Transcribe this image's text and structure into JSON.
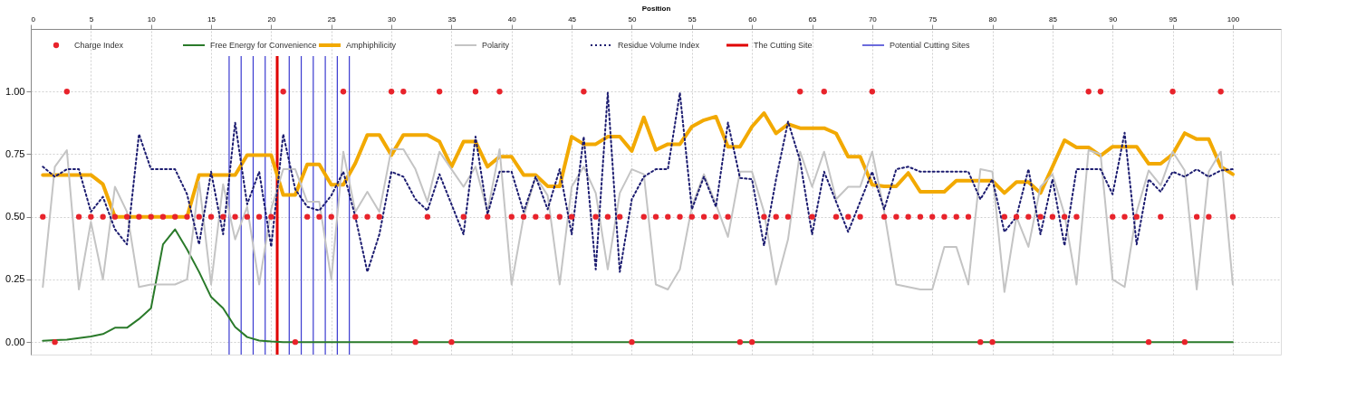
{
  "chart_data": {
    "type": "line",
    "xlabel": "Position",
    "legend": "top left",
    "grid": true,
    "xlim": [
      0,
      104
    ],
    "ylim": [
      -0.05,
      1.25
    ],
    "xticks": [
      0,
      5,
      10,
      15,
      20,
      25,
      30,
      35,
      40,
      45,
      50,
      55,
      60,
      65,
      70,
      75,
      80,
      85,
      90,
      95,
      100
    ],
    "yticks": [
      {
        "value": 0,
        "label": "0.00"
      },
      {
        "value": 0.25,
        "label": "0.25"
      },
      {
        "value": 0.5,
        "label": "0.50"
      },
      {
        "value": 0.75,
        "label": "0.75"
      },
      {
        "value": 1,
        "label": "1.00"
      }
    ],
    "x": [
      1,
      2,
      3,
      4,
      5,
      6,
      7,
      8,
      9,
      10,
      11,
      12,
      13,
      14,
      15,
      16,
      17,
      18,
      19,
      20,
      21,
      22,
      23,
      24,
      25,
      26,
      27,
      28,
      29,
      30,
      31,
      32,
      33,
      34,
      35,
      36,
      37,
      38,
      39,
      40,
      41,
      42,
      43,
      44,
      45,
      46,
      47,
      48,
      49,
      50,
      51,
      52,
      53,
      54,
      55,
      56,
      57,
      58,
      59,
      60,
      61,
      62,
      63,
      64,
      65,
      66,
      67,
      68,
      69,
      70,
      71,
      72,
      73,
      74,
      75,
      76,
      77,
      78,
      79,
      80,
      81,
      82,
      83,
      84,
      85,
      86,
      87,
      88,
      89,
      90,
      91,
      92,
      93,
      94,
      95,
      96,
      97,
      98,
      99,
      100
    ],
    "series": [
      {
        "name": "Charge Index",
        "type": "scatter",
        "marker": "circle",
        "color": "#e8232b",
        "values": [
          0.5,
          0,
          1,
          0.5,
          0.5,
          0.5,
          0.5,
          0.5,
          0.5,
          0.5,
          0.5,
          0.5,
          0.5,
          0.5,
          0.5,
          0.5,
          0.5,
          0.5,
          0.5,
          0.5,
          1,
          0,
          0.5,
          0.5,
          0.5,
          1,
          0.5,
          0.5,
          0.5,
          1,
          1,
          0,
          0.5,
          1,
          0,
          0.5,
          1,
          0.5,
          1,
          0.5,
          0.5,
          0.5,
          0.5,
          0.5,
          0.5,
          1,
          0.5,
          0.5,
          0.5,
          0,
          0.5,
          0.5,
          0.5,
          0.5,
          0.5,
          0.5,
          0.5,
          0.5,
          0,
          0,
          0.5,
          0.5,
          0.5,
          1,
          0.5,
          1,
          0.5,
          0.5,
          0.5,
          1,
          0.5,
          0.5,
          0.5,
          0.5,
          0.5,
          0.5,
          0.5,
          0.5,
          0,
          0,
          0.5,
          0.5,
          0.5,
          0.5,
          0.5,
          0.5,
          0.5,
          1,
          1,
          0.5,
          0.5,
          0.5,
          0,
          0.5,
          1,
          0,
          0.5,
          0.5,
          1,
          0.5
        ]
      },
      {
        "name": "Free Energy for Convenience",
        "line_style": "solid",
        "color": "#2a7a2a",
        "values": [
          0.005,
          0.008,
          0.01,
          0.016,
          0.022,
          0.032,
          0.057,
          0.057,
          0.092,
          0.135,
          0.39,
          0.45,
          0.37,
          0.28,
          0.18,
          0.135,
          0.06,
          0.02,
          0.006,
          0.002,
          0,
          0,
          0,
          0,
          0,
          0,
          0,
          0,
          0,
          0,
          0,
          0,
          0,
          0,
          0,
          0,
          0,
          0,
          0,
          0,
          0,
          0,
          0,
          0,
          0,
          0,
          0,
          0,
          0,
          0,
          0,
          0,
          0,
          0,
          0,
          0,
          0,
          0,
          0,
          0,
          0,
          0,
          0,
          0,
          0,
          0,
          0,
          0,
          0,
          0,
          0,
          0,
          0,
          0,
          0,
          0,
          0,
          0,
          0,
          0,
          0,
          0,
          0,
          0,
          0,
          0,
          0,
          0,
          0,
          0,
          0,
          0,
          0,
          0,
          0,
          0,
          0,
          0,
          0,
          0
        ]
      },
      {
        "name": "Amphiphilicity",
        "line_style": "solid",
        "color": "#f2a900",
        "values": [
          0.667,
          0.667,
          0.667,
          0.667,
          0.667,
          0.63,
          0.5,
          0.5,
          0.5,
          0.5,
          0.5,
          0.5,
          0.5,
          0.667,
          0.667,
          0.667,
          0.667,
          0.746,
          0.746,
          0.746,
          0.587,
          0.587,
          0.709,
          0.709,
          0.628,
          0.628,
          0.714,
          0.827,
          0.827,
          0.746,
          0.827,
          0.827,
          0.827,
          0.8,
          0.7,
          0.8,
          0.8,
          0.7,
          0.74,
          0.74,
          0.667,
          0.667,
          0.622,
          0.622,
          0.82,
          0.79,
          0.79,
          0.82,
          0.82,
          0.763,
          0.897,
          0.767,
          0.79,
          0.79,
          0.86,
          0.886,
          0.9,
          0.78,
          0.78,
          0.86,
          0.914,
          0.833,
          0.87,
          0.854,
          0.854,
          0.854,
          0.833,
          0.74,
          0.74,
          0.628,
          0.622,
          0.622,
          0.675,
          0.6,
          0.6,
          0.6,
          0.644,
          0.644,
          0.644,
          0.644,
          0.595,
          0.639,
          0.639,
          0.595,
          0.7,
          0.806,
          0.777,
          0.777,
          0.744,
          0.78,
          0.78,
          0.78,
          0.712,
          0.712,
          0.75,
          0.834,
          0.81,
          0.81,
          0.7,
          0.67
        ]
      },
      {
        "name": "Polarity",
        "line_style": "solid",
        "color": "#c4c4c4",
        "values": [
          0.22,
          0.7,
          0.766,
          0.21,
          0.48,
          0.25,
          0.62,
          0.52,
          0.22,
          0.23,
          0.23,
          0.23,
          0.25,
          0.64,
          0.23,
          0.63,
          0.41,
          0.54,
          0.23,
          0.53,
          0.69,
          0.69,
          0.56,
          0.56,
          0.25,
          0.76,
          0.52,
          0.6,
          0.52,
          0.77,
          0.77,
          0.69,
          0.56,
          0.76,
          0.69,
          0.62,
          0.7,
          0.52,
          0.77,
          0.23,
          0.5,
          0.66,
          0.585,
          0.23,
          0.62,
          0.7,
          0.595,
          0.29,
          0.595,
          0.69,
          0.67,
          0.23,
          0.21,
          0.29,
          0.54,
          0.67,
          0.55,
          0.42,
          0.68,
          0.68,
          0.52,
          0.23,
          0.41,
          0.76,
          0.62,
          0.76,
          0.57,
          0.62,
          0.62,
          0.76,
          0.52,
          0.23,
          0.22,
          0.21,
          0.21,
          0.38,
          0.38,
          0.23,
          0.69,
          0.68,
          0.2,
          0.5,
          0.38,
          0.62,
          0.67,
          0.51,
          0.23,
          0.766,
          0.75,
          0.25,
          0.22,
          0.52,
          0.685,
          0.626,
          0.76,
          0.685,
          0.21,
          0.68,
          0.76,
          0.23
        ]
      },
      {
        "name": "Residue Volume Index",
        "line_style": "dotted",
        "color": "#1c1c70",
        "values": [
          0.7,
          0.66,
          0.69,
          0.69,
          0.52,
          0.58,
          0.45,
          0.39,
          0.83,
          0.69,
          0.69,
          0.69,
          0.59,
          0.39,
          0.68,
          0.43,
          0.876,
          0.55,
          0.68,
          0.38,
          0.83,
          0.61,
          0.54,
          0.525,
          0.585,
          0.68,
          0.5,
          0.28,
          0.43,
          0.68,
          0.66,
          0.57,
          0.525,
          0.67,
          0.55,
          0.43,
          0.82,
          0.51,
          0.68,
          0.68,
          0.52,
          0.66,
          0.53,
          0.69,
          0.43,
          0.82,
          0.29,
          0.995,
          0.28,
          0.57,
          0.66,
          0.69,
          0.69,
          0.995,
          0.53,
          0.66,
          0.54,
          0.876,
          0.655,
          0.65,
          0.385,
          0.65,
          0.88,
          0.725,
          0.43,
          0.68,
          0.56,
          0.44,
          0.56,
          0.68,
          0.53,
          0.69,
          0.7,
          0.68,
          0.68,
          0.68,
          0.68,
          0.68,
          0.57,
          0.65,
          0.44,
          0.5,
          0.69,
          0.43,
          0.65,
          0.385,
          0.69,
          0.69,
          0.69,
          0.59,
          0.836,
          0.39,
          0.65,
          0.6,
          0.68,
          0.66,
          0.69,
          0.66,
          0.685,
          0.69
        ]
      }
    ],
    "ref_lines": [
      {
        "axis": "x",
        "value": 20.5,
        "label": "The Cutting Site",
        "color": "#e00000"
      },
      {
        "axis": "x",
        "value": 16.5,
        "label": "Potential Cutting Sites",
        "color": "#3a3ad0"
      },
      {
        "axis": "x",
        "value": 17.5,
        "color": "#3a3ad0"
      },
      {
        "axis": "x",
        "value": 18.5,
        "color": "#3a3ad0"
      },
      {
        "axis": "x",
        "value": 19.5,
        "color": "#3a3ad0"
      },
      {
        "axis": "x",
        "value": 21.5,
        "color": "#3a3ad0"
      },
      {
        "axis": "x",
        "value": 22.5,
        "color": "#3a3ad0"
      },
      {
        "axis": "x",
        "value": 23.5,
        "color": "#3a3ad0"
      },
      {
        "axis": "x",
        "value": 24.5,
        "color": "#3a3ad0"
      },
      {
        "axis": "x",
        "value": 25.5,
        "color": "#3a3ad0"
      },
      {
        "axis": "x",
        "value": 26.5,
        "color": "#3a3ad0"
      }
    ]
  }
}
